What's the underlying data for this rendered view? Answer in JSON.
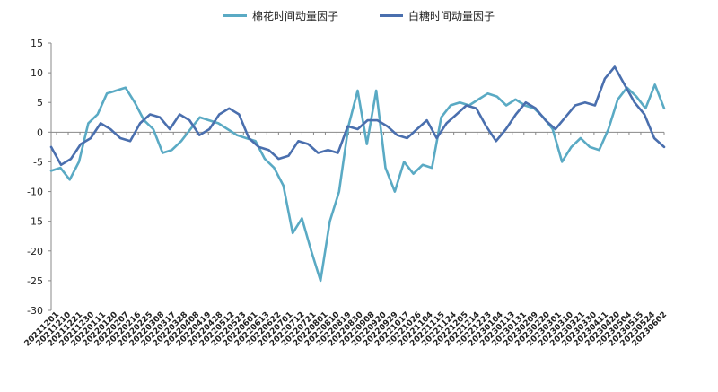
{
  "chart_data": {
    "type": "line",
    "title": "",
    "xlabel": "",
    "ylabel": "",
    "ylim": [
      -30,
      15
    ],
    "yticks": [
      15,
      10,
      5,
      0,
      -5,
      -10,
      -15,
      -20,
      -25,
      -30
    ],
    "grid": false,
    "legend_position": "top",
    "colors": {
      "cotton": "#5aaac4",
      "sugar": "#4a6fae"
    },
    "x_tick_labels": [
      "20211201",
      "20211210",
      "20211221",
      "20211230",
      "20220111",
      "20220120",
      "20220207",
      "20220216",
      "20220225",
      "20220308",
      "20220317",
      "20220328",
      "20220408",
      "20220419",
      "20220428",
      "20220512",
      "20220523",
      "20220601",
      "20220613",
      "20220622",
      "20220701",
      "20220712",
      "20220721",
      "20220801",
      "20220810",
      "20220819",
      "20220830",
      "20220908",
      "20220920",
      "20220929",
      "20221017",
      "20221026",
      "20221104",
      "20221115",
      "20221124",
      "20221205",
      "20221214",
      "20221223",
      "20230104",
      "20230113",
      "20230131",
      "20230209",
      "20230220",
      "20230301",
      "20230310",
      "20230321",
      "20230330",
      "20230411",
      "20230420",
      "20230504",
      "20230515",
      "20230524",
      "20230602"
    ],
    "series": [
      {
        "name": "棉花时间动量因子",
        "key": "cotton",
        "values": [
          -6.5,
          -6.0,
          -8.0,
          -5.0,
          1.5,
          3.0,
          6.5,
          7.0,
          7.5,
          5.0,
          2.0,
          0.5,
          -3.5,
          -3.0,
          -1.5,
          0.5,
          2.5,
          2.0,
          1.5,
          0.5,
          -0.5,
          -1.0,
          -1.5,
          -4.5,
          -6.0,
          -9.0,
          -17.0,
          -14.5,
          -20.0,
          -25.0,
          -15.0,
          -10.0,
          1.0,
          7.0,
          -2.0,
          7.0,
          -6.0,
          -10.0,
          -5.0,
          -7.0,
          -5.5,
          -6.0,
          2.5,
          4.5,
          5.0,
          4.5,
          5.5,
          6.5,
          6.0,
          4.5,
          5.5,
          4.5,
          4.0,
          2.5,
          0.5,
          -5.0,
          -2.5,
          -1.0,
          -2.5,
          -3.0,
          0.5,
          5.5,
          7.5,
          6.0,
          4.0,
          8.0,
          4.0
        ]
      },
      {
        "name": "白糖时间动量因子",
        "key": "sugar",
        "values": [
          -2.5,
          -5.5,
          -4.5,
          -2.0,
          -1.0,
          1.5,
          0.5,
          -1.0,
          -1.5,
          1.5,
          3.0,
          2.5,
          0.5,
          3.0,
          2.0,
          -0.5,
          0.5,
          3.0,
          4.0,
          3.0,
          -1.0,
          -2.5,
          -3.0,
          -4.5,
          -4.0,
          -1.5,
          -2.0,
          -3.5,
          -3.0,
          -3.5,
          1.0,
          0.5,
          2.0,
          2.0,
          1.0,
          -0.5,
          -1.0,
          0.5,
          2.0,
          -1.0,
          1.5,
          3.0,
          4.5,
          4.0,
          1.0,
          -1.5,
          0.5,
          3.0,
          5.0,
          4.0,
          2.0,
          0.5,
          2.5,
          4.5,
          5.0,
          4.5,
          9.0,
          11.0,
          8.0,
          5.0,
          3.0,
          -1.0,
          -2.5
        ]
      }
    ]
  }
}
